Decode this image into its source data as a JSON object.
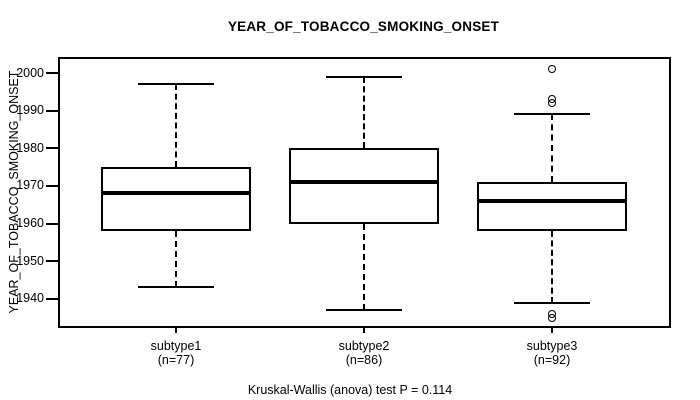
{
  "title": "YEAR_OF_TOBACCO_SMOKING_ONSET",
  "footer": {
    "text": "Kruskal-Wallis (anova) test P = 0.114"
  },
  "chart_data": {
    "type": "boxplot",
    "title": "YEAR_OF_TOBACCO_SMOKING_ONSET",
    "ylabel": "YEAR_OF_TOBACCO_SMOKING_ONSET",
    "xlabel": "",
    "ylim": [
      1932.5,
      2004
    ],
    "yticks": [
      1940,
      1950,
      1960,
      1970,
      1980,
      1990,
      2000
    ],
    "grid": false,
    "legend": "none",
    "groups": [
      {
        "label": "subtype1",
        "sublabel": "(n=77)",
        "n": 77,
        "whisker_low": 1943,
        "q1": 1958,
        "median": 1968,
        "q3": 1975,
        "whisker_high": 1997,
        "outliers": []
      },
      {
        "label": "subtype2",
        "sublabel": "(n=86)",
        "n": 86,
        "whisker_low": 1937,
        "q1": 1960,
        "median": 1971,
        "q3": 1980,
        "whisker_high": 1999,
        "outliers": []
      },
      {
        "label": "subtype3",
        "sublabel": "(n=92)",
        "n": 92,
        "whisker_low": 1939,
        "q1": 1958,
        "median": 1966,
        "q3": 1971,
        "whisker_high": 1989,
        "outliers": [
          2001,
          1993,
          1992,
          1936,
          1935
        ]
      }
    ],
    "annotation": "Kruskal-Wallis (anova) test P = 0.114",
    "colors": {
      "line": "#000000",
      "background": "#ffffff"
    }
  }
}
